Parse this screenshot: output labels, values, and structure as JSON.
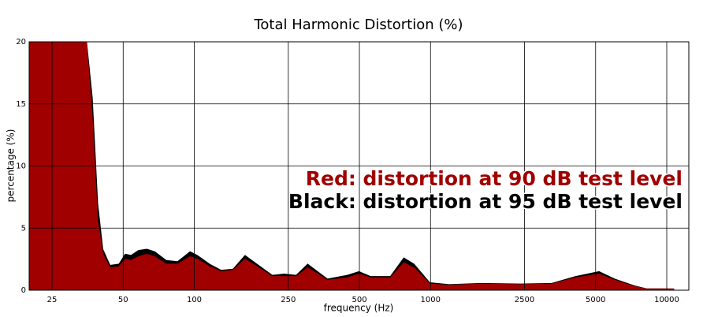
{
  "chart_data": {
    "type": "area",
    "title": "Total Harmonic Distortion (%)",
    "x_label": "frequency (Hz)",
    "y_label": "percentage (%)",
    "log_x": true,
    "grid": true,
    "xlim": [
      20,
      12400
    ],
    "ylim": [
      0,
      20
    ],
    "xticks": [
      25,
      50,
      100,
      250,
      500,
      1000,
      2500,
      5000,
      10000
    ],
    "yticks": [
      0,
      5,
      10,
      15,
      20
    ],
    "x": [
      20,
      35,
      37,
      39,
      41,
      44,
      48,
      51,
      54,
      58,
      63,
      68,
      76,
      85,
      96,
      103,
      116,
      130,
      146,
      164,
      184,
      214,
      240,
      270,
      302,
      327,
      366,
      444,
      498,
      558,
      676,
      771,
      851,
      993,
      1200,
      1635,
      2400,
      3260,
      4100,
      5170,
      6020,
      7300,
      8190,
      10700
    ],
    "series": [
      {
        "name": "Black: distortion at 95 dB test level",
        "color": "#000000",
        "values": [
          20,
          20,
          15.5,
          7,
          3.3,
          2.0,
          2.1,
          2.9,
          2.8,
          3.2,
          3.3,
          3.1,
          2.4,
          2.3,
          3.1,
          2.8,
          2.1,
          1.6,
          1.7,
          2.8,
          2.1,
          1.2,
          1.3,
          1.2,
          2.1,
          1.6,
          0.9,
          1.2,
          1.5,
          1.1,
          1.1,
          2.6,
          2.1,
          0.6,
          0.45,
          0.55,
          0.5,
          0.55,
          1.1,
          1.5,
          0.9,
          0.35,
          0.12,
          0.1
        ]
      },
      {
        "name": "Red: distortion at 90 dB test level",
        "color": "#a00000",
        "values": [
          20,
          20,
          13.8,
          5.6,
          2.9,
          1.8,
          1.9,
          2.5,
          2.4,
          2.7,
          2.9,
          2.7,
          2.1,
          2.1,
          2.7,
          2.5,
          1.9,
          1.5,
          1.6,
          2.5,
          1.9,
          1.1,
          1.1,
          1.1,
          1.8,
          1.4,
          0.8,
          1.0,
          1.3,
          1.0,
          1.0,
          2.2,
          1.8,
          0.5,
          0.4,
          0.5,
          0.45,
          0.5,
          1.0,
          1.3,
          0.8,
          0.3,
          0.1,
          0.1
        ]
      }
    ]
  }
}
